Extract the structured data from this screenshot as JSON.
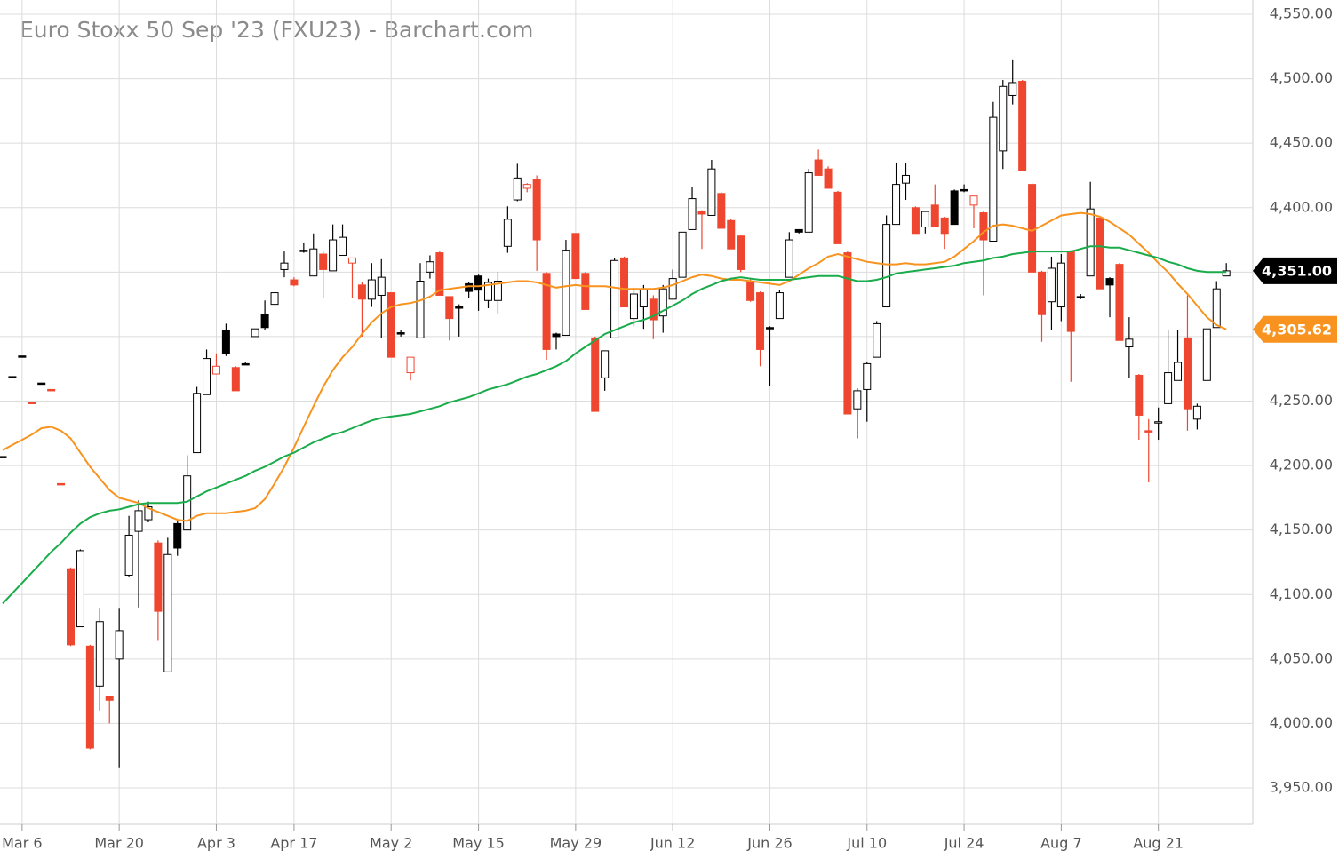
{
  "chart_data": {
    "type": "candlestick",
    "title": "Euro Stoxx 50 Sep '23 (FXU23) - Barchart.com",
    "categories": [
      null,
      null,
      "Mar 6",
      null,
      null,
      null,
      null,
      null,
      null,
      null,
      null,
      null,
      "Mar 20",
      null,
      null,
      null,
      null,
      null,
      null,
      null,
      null,
      null,
      "Apr 3",
      null,
      null,
      null,
      null,
      null,
      null,
      null,
      "Apr 17",
      null,
      null,
      null,
      null,
      null,
      null,
      null,
      null,
      null,
      "May 2",
      null,
      null,
      null,
      null,
      null,
      null,
      null,
      null,
      "May 15",
      null,
      null,
      null,
      null,
      null,
      null,
      null,
      null,
      null,
      "May 29",
      null,
      null,
      null,
      null,
      null,
      null,
      null,
      null,
      null,
      "Jun 12",
      null,
      null,
      null,
      null,
      null,
      null,
      null,
      null,
      null,
      "Jun 26",
      null,
      null,
      null,
      null,
      null,
      null,
      null,
      null,
      null,
      "Jul 10",
      null,
      null,
      null,
      null,
      null,
      null,
      null,
      null,
      null,
      "Jul 24",
      null,
      null,
      null,
      null,
      null,
      null,
      null,
      null,
      null,
      "Aug 7",
      null,
      null,
      null,
      null,
      null,
      null,
      null,
      null,
      null,
      "Aug 21",
      null,
      null,
      null,
      null,
      null,
      null,
      null
    ],
    "ohlc": [
      [
        4207,
        4207,
        4207,
        4207
      ],
      [
        4269,
        4269,
        4269,
        4269
      ],
      [
        4285,
        4285,
        4285,
        4285
      ],
      [
        4249,
        4249,
        4249,
        4249
      ],
      [
        4264,
        4264,
        4264,
        4264
      ],
      [
        4259,
        4259,
        4259,
        4259
      ],
      [
        4186,
        4186,
        4186,
        4186
      ],
      [
        4120,
        4121,
        4060,
        4061
      ],
      [
        4075,
        4135,
        4075,
        4134
      ],
      [
        4060,
        4061,
        3980,
        3981
      ],
      [
        4029,
        4089,
        4010,
        4079
      ],
      [
        4021,
        4021,
        4000,
        4018
      ],
      [
        4050,
        4089,
        3966,
        4072
      ],
      [
        4115,
        4161,
        4114,
        4146
      ],
      [
        4149,
        4173,
        4090,
        4165
      ],
      [
        4158,
        4172,
        4156,
        4168
      ],
      [
        4140,
        4142,
        4064,
        4087
      ],
      [
        4040,
        4144,
        4040,
        4131
      ],
      [
        4155,
        4158,
        4130,
        4136
      ],
      [
        4150,
        4208,
        4150,
        4192
      ],
      [
        4210,
        4261,
        4210,
        4256
      ],
      [
        4255,
        4290,
        4255,
        4283
      ],
      [
        4271,
        4287,
        4271,
        4277
      ],
      [
        4305,
        4310,
        4285,
        4287
      ],
      [
        4276,
        4277,
        4258,
        4258
      ],
      [
        4279,
        4280,
        4278,
        4279
      ],
      [
        4300,
        4306,
        4300,
        4306
      ],
      [
        4317,
        4328,
        4305,
        4307
      ],
      [
        4325,
        4334,
        4325,
        4334
      ],
      [
        4352,
        4366,
        4346,
        4357
      ],
      [
        4344,
        4346,
        4339,
        4340
      ],
      [
        4367,
        4373,
        4365,
        4366
      ],
      [
        4347,
        4380,
        4347,
        4368
      ],
      [
        4364,
        4366,
        4330,
        4352
      ],
      [
        4351,
        4387,
        4351,
        4375
      ],
      [
        4363,
        4387,
        4363,
        4377
      ],
      [
        4357,
        4361,
        4330,
        4361
      ],
      [
        4340,
        4342,
        4300,
        4329
      ],
      [
        4329,
        4357,
        4323,
        4344
      ],
      [
        4332,
        4360,
        4299,
        4346
      ],
      [
        4334,
        4334,
        4284,
        4284
      ],
      [
        4303,
        4305,
        4300,
        4302
      ],
      [
        4272,
        4284,
        4266,
        4284
      ],
      [
        4299,
        4357,
        4299,
        4343
      ],
      [
        4350,
        4363,
        4345,
        4358
      ],
      [
        4365,
        4366,
        4332,
        4332
      ],
      [
        4331,
        4331,
        4297,
        4314
      ],
      [
        4323,
        4325,
        4300,
        4322
      ],
      [
        4341,
        4342,
        4330,
        4335
      ],
      [
        4347,
        4348,
        4320,
        4336
      ],
      [
        4328,
        4345,
        4322,
        4342
      ],
      [
        4328,
        4350,
        4318,
        4343
      ],
      [
        4370,
        4401,
        4365,
        4391
      ],
      [
        4406,
        4434,
        4405,
        4423
      ],
      [
        4415,
        4419,
        4412,
        4418
      ],
      [
        4422,
        4425,
        4351,
        4375
      ],
      [
        4349,
        4350,
        4282,
        4290
      ],
      [
        4302,
        4303,
        4290,
        4300
      ],
      [
        4301,
        4375,
        4301,
        4367
      ],
      [
        4380,
        4380,
        4345,
        4345
      ],
      [
        4349,
        4350,
        4321,
        4321
      ],
      [
        4299,
        4300,
        4242,
        4242
      ],
      [
        4268,
        4289,
        4258,
        4289
      ],
      [
        4299,
        4361,
        4299,
        4359
      ],
      [
        4361,
        4362,
        4323,
        4323
      ],
      [
        4314,
        4338,
        4308,
        4333
      ],
      [
        4323,
        4340,
        4306,
        4337
      ],
      [
        4329,
        4332,
        4298,
        4313
      ],
      [
        4316,
        4340,
        4303,
        4337
      ],
      [
        4329,
        4352,
        4329,
        4345
      ],
      [
        4346,
        4381,
        4346,
        4381
      ],
      [
        4383,
        4416,
        4383,
        4407
      ],
      [
        4397,
        4398,
        4368,
        4395
      ],
      [
        4394,
        4437,
        4394,
        4430
      ],
      [
        4411,
        4412,
        4384,
        4384
      ],
      [
        4390,
        4391,
        4368,
        4368
      ],
      [
        4378,
        4379,
        4350,
        4352
      ],
      [
        4343,
        4345,
        4327,
        4328
      ],
      [
        4334,
        4335,
        4277,
        4290
      ],
      [
        4307,
        4308,
        4262,
        4306
      ],
      [
        4314,
        4336,
        4314,
        4334
      ],
      [
        4346,
        4381,
        4346,
        4375
      ],
      [
        4383,
        4383,
        4380,
        4381
      ],
      [
        4381,
        4430,
        4381,
        4427
      ],
      [
        4437,
        4445,
        4425,
        4425
      ],
      [
        4430,
        4432,
        4415,
        4415
      ],
      [
        4412,
        4413,
        4372,
        4372
      ],
      [
        4365,
        4366,
        4240,
        4240
      ],
      [
        4244,
        4260,
        4221,
        4258
      ],
      [
        4259,
        4280,
        4234,
        4279
      ],
      [
        4284,
        4312,
        4284,
        4310
      ],
      [
        4323,
        4394,
        4323,
        4387
      ],
      [
        4387,
        4435,
        4387,
        4418
      ],
      [
        4419,
        4435,
        4406,
        4425
      ],
      [
        4400,
        4401,
        4380,
        4380
      ],
      [
        4385,
        4397,
        4380,
        4397
      ],
      [
        4402,
        4418,
        4385,
        4385
      ],
      [
        4392,
        4393,
        4368,
        4380
      ],
      [
        4413,
        4414,
        4387,
        4387
      ],
      [
        4414,
        4418,
        4412,
        4413
      ],
      [
        4402,
        4409,
        4384,
        4409
      ],
      [
        4396,
        4397,
        4332,
        4375
      ],
      [
        4374,
        4482,
        4374,
        4470
      ],
      [
        4444,
        4499,
        4430,
        4494
      ],
      [
        4487,
        4515,
        4480,
        4497
      ],
      [
        4498,
        4499,
        4429,
        4429
      ],
      [
        4418,
        4419,
        4350,
        4350
      ],
      [
        4350,
        4351,
        4296,
        4317
      ],
      [
        4327,
        4362,
        4305,
        4353
      ],
      [
        4323,
        4364,
        4312,
        4357
      ],
      [
        4366,
        4367,
        4265,
        4304
      ],
      [
        4331,
        4333,
        4329,
        4330
      ],
      [
        4347,
        4420,
        4347,
        4399
      ],
      [
        4392,
        4393,
        4337,
        4337
      ],
      [
        4345,
        4346,
        4315,
        4340
      ],
      [
        4356,
        4357,
        4297,
        4297
      ],
      [
        4292,
        4315,
        4268,
        4298
      ],
      [
        4270,
        4271,
        4220,
        4239
      ],
      [
        4227,
        4236,
        4187,
        4226
      ],
      [
        4233,
        4245,
        4220,
        4234
      ],
      [
        4248,
        4305,
        4248,
        4272
      ],
      [
        4266,
        4305,
        4266,
        4280
      ],
      [
        4299,
        4332,
        4227,
        4244
      ],
      [
        4236,
        4248,
        4228,
        4246
      ],
      [
        4266,
        4306,
        4266,
        4306
      ],
      [
        4307,
        4343,
        4307,
        4337
      ],
      [
        4347,
        4357,
        4347,
        4351
      ]
    ],
    "up_color": "#000000",
    "down_color": "#ef4630",
    "series": [
      {
        "color": "#f7931e",
        "values": [
          4212,
          4216,
          4220,
          4224,
          4229,
          4230,
          4227,
          4221,
          4210,
          4199,
          4190,
          4181,
          4175,
          4173,
          4171,
          4167,
          4164,
          4161,
          4158,
          4157,
          4161,
          4163,
          4163,
          4163,
          4164,
          4165,
          4167,
          4174,
          4186,
          4199,
          4214,
          4230,
          4246,
          4261,
          4274,
          4284,
          4292,
          4302,
          4311,
          4318,
          4323,
          4325,
          4326,
          4328,
          4331,
          4336,
          4337,
          4338,
          4339,
          4339,
          4340,
          4341,
          4342,
          4343,
          4343,
          4342,
          4340,
          4338,
          4339,
          4340,
          4339,
          4339,
          4339,
          4338,
          4337,
          4337,
          4337,
          4337,
          4338,
          4340,
          4343,
          4346,
          4348,
          4347,
          4345,
          4344,
          4344,
          4343,
          4342,
          4341,
          4340,
          4343,
          4348,
          4353,
          4357,
          4362,
          4364,
          4362,
          4360,
          4358,
          4357,
          4356,
          4356,
          4357,
          4356,
          4356,
          4357,
          4358,
          4362,
          4368,
          4374,
          4381,
          4386,
          4387,
          4386,
          4384,
          4382,
          4386,
          4390,
          4394,
          4395,
          4396,
          4395,
          4393,
          4389,
          4384,
          4379,
          4372,
          4365,
          4357,
          4350,
          4341,
          4333,
          4324,
          4315,
          4309,
          4305.62
        ]
      },
      {
        "color": "#1aab4b",
        "values": [
          4093,
          4101,
          4109,
          4117,
          4125,
          4133,
          4140,
          4148,
          4155,
          4160,
          4163,
          4165,
          4166,
          4168,
          4170,
          4171,
          4171,
          4171,
          4171,
          4172,
          4176,
          4180,
          4183,
          4186,
          4189,
          4192,
          4196,
          4199,
          4203,
          4207,
          4210,
          4214,
          4218,
          4221,
          4224,
          4226,
          4229,
          4232,
          4235,
          4237,
          4238,
          4239,
          4240,
          4242,
          4244,
          4246,
          4249,
          4251,
          4253,
          4256,
          4259,
          4261,
          4263,
          4266,
          4269,
          4271,
          4274,
          4277,
          4281,
          4287,
          4292,
          4297,
          4302,
          4305,
          4308,
          4311,
          4313,
          4316,
          4320,
          4324,
          4328,
          4333,
          4337,
          4340,
          4343,
          4345,
          4346,
          4345,
          4344,
          4344,
          4344,
          4344,
          4345,
          4346,
          4347,
          4347,
          4347,
          4345,
          4343,
          4343,
          4344,
          4346,
          4349,
          4350,
          4351,
          4352,
          4353,
          4354,
          4355,
          4357,
          4358,
          4359,
          4361,
          4362,
          4364,
          4365,
          4366,
          4366,
          4366,
          4366,
          4366,
          4368,
          4370,
          4370,
          4369,
          4369,
          4367,
          4365,
          4363,
          4361,
          4358,
          4356,
          4353,
          4351,
          4350,
          4350,
          4350
        ]
      }
    ],
    "tags": [
      {
        "value": 4351,
        "label": "4,351.00",
        "color": "#000000"
      },
      {
        "value": 4305.62,
        "label": "4,305.62",
        "color": "#f7931e"
      }
    ],
    "ylim": [
      3925,
      4560
    ],
    "yticks": [
      {
        "value": 3950,
        "label": "3,950.00"
      },
      {
        "value": 4000,
        "label": "4,000.00"
      },
      {
        "value": 4050,
        "label": "4,050.00"
      },
      {
        "value": 4100,
        "label": "4,100.00"
      },
      {
        "value": 4150,
        "label": "4,150.00"
      },
      {
        "value": 4200,
        "label": "4,200.00"
      },
      {
        "value": 4250,
        "label": "4,250.00"
      },
      {
        "value": 4300,
        "label": "4,300.00"
      },
      {
        "value": 4350,
        "label": "4,350.00"
      },
      {
        "value": 4400,
        "label": "4,400.00"
      },
      {
        "value": 4450,
        "label": "4,450.00"
      },
      {
        "value": 4500,
        "label": "4,500.00"
      },
      {
        "value": 4550,
        "label": "4,550.00"
      }
    ],
    "grid": true
  }
}
